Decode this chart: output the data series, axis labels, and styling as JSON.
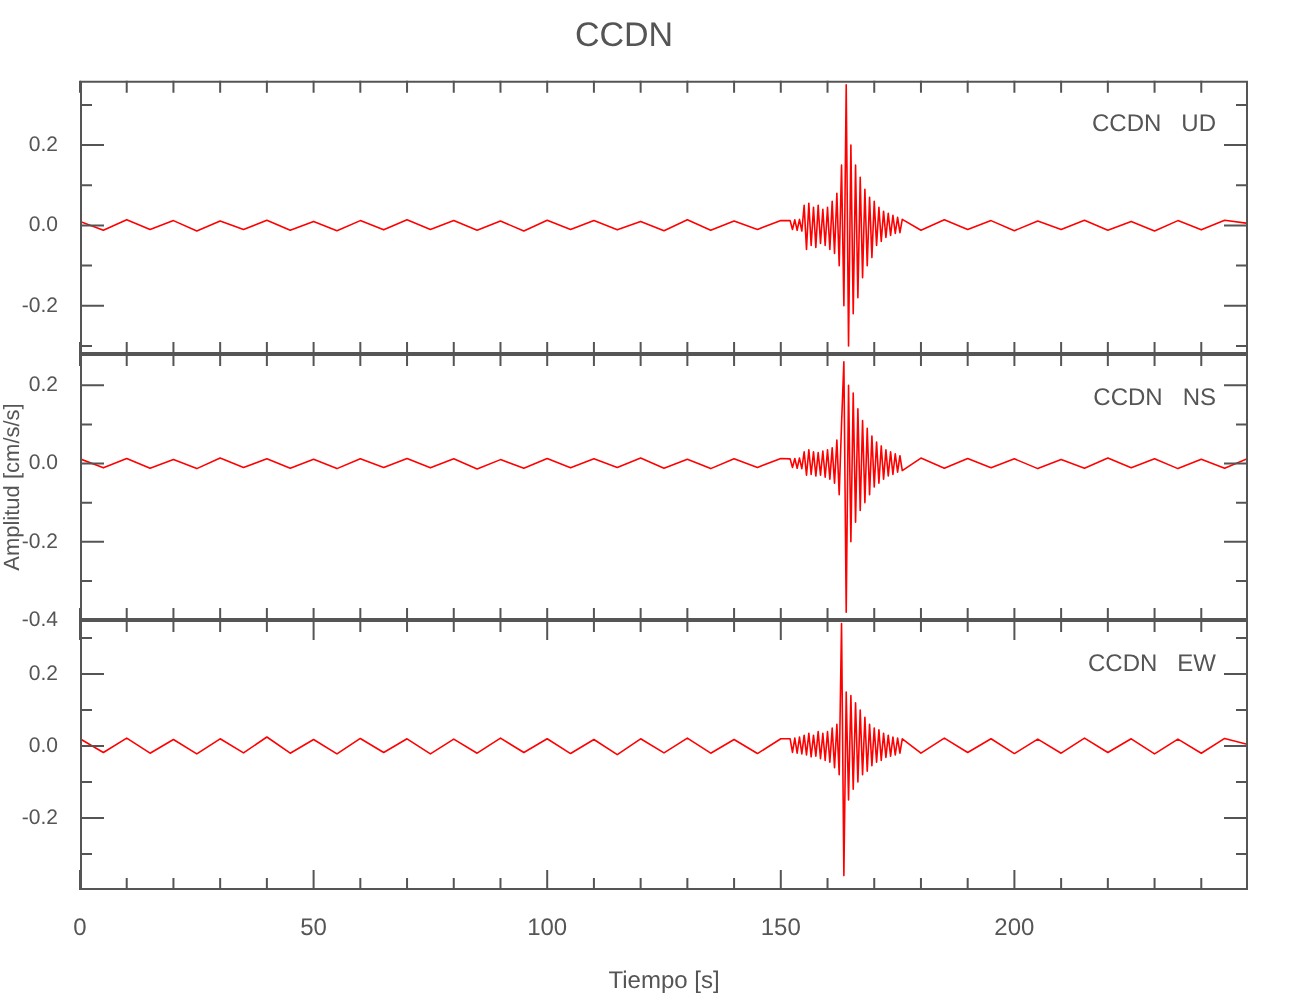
{
  "chart_data": [
    {
      "type": "line",
      "title": "CCDN",
      "annotations": [
        "CCDN   UD"
      ],
      "tick_labels": "y",
      "xlim": [
        0,
        250
      ],
      "xticks": [
        {
          "value": 0,
          "label": null
        },
        {
          "value": 10,
          "label": null
        },
        {
          "value": 20,
          "label": null
        },
        {
          "value": 30,
          "label": null
        },
        {
          "value": 40,
          "label": null
        },
        {
          "value": 50,
          "label": null
        },
        {
          "value": 60,
          "label": null
        },
        {
          "value": 70,
          "label": null
        },
        {
          "value": 80,
          "label": null
        },
        {
          "value": 90,
          "label": null
        },
        {
          "value": 100,
          "label": null
        },
        {
          "value": 110,
          "label": null
        },
        {
          "value": 120,
          "label": null
        },
        {
          "value": 130,
          "label": null
        },
        {
          "value": 140,
          "label": null
        },
        {
          "value": 150,
          "label": null
        },
        {
          "value": 160,
          "label": null
        },
        {
          "value": 170,
          "label": null
        },
        {
          "value": 180,
          "label": null
        },
        {
          "value": 190,
          "label": null
        },
        {
          "value": 200,
          "label": null
        },
        {
          "value": 210,
          "label": null
        },
        {
          "value": 220,
          "label": null
        },
        {
          "value": 230,
          "label": null
        },
        {
          "value": 240,
          "label": null
        }
      ],
      "ylim": [
        -0.32,
        0.36
      ],
      "yticks": [
        {
          "value": -0.3,
          "label": null
        },
        -0.2,
        {
          "value": -0.1,
          "label": null
        },
        {
          "value": 0,
          "label": "0.0"
        },
        {
          "value": 0.1,
          "label": null
        },
        0.2,
        {
          "value": 0.3,
          "label": null
        }
      ],
      "x": [
        0,
        5,
        10,
        15,
        20,
        25,
        30,
        35,
        40,
        45,
        50,
        55,
        60,
        65,
        70,
        75,
        80,
        85,
        90,
        95,
        100,
        105,
        110,
        115,
        120,
        125,
        130,
        135,
        140,
        145,
        150,
        152,
        152.5,
        153,
        153.5,
        154,
        154.5,
        155,
        155.5,
        156,
        156.5,
        157,
        157.5,
        158,
        158.5,
        159,
        159.5,
        160,
        160.5,
        161,
        161.5,
        162,
        162.5,
        163,
        163.5,
        164,
        164.5,
        165,
        165.5,
        166,
        166.5,
        167,
        167.5,
        168,
        168.5,
        169,
        169.5,
        170,
        170.5,
        171,
        171.5,
        172,
        172.5,
        173,
        173.5,
        174,
        174.5,
        175,
        175.5,
        176,
        180,
        185,
        190,
        195,
        200,
        205,
        210,
        215,
        220,
        225,
        230,
        235,
        240,
        245,
        250
      ],
      "series": [
        {
          "color": "#ff0000",
          "values": [
            0.01,
            -0.012,
            0.014,
            -0.01,
            0.012,
            -0.014,
            0.011,
            -0.01,
            0.013,
            -0.012,
            0.01,
            -0.013,
            0.012,
            -0.011,
            0.014,
            -0.01,
            0.012,
            -0.012,
            0.011,
            -0.014,
            0.013,
            -0.01,
            0.012,
            -0.011,
            0.01,
            -0.013,
            0.014,
            -0.012,
            0.011,
            -0.01,
            0.012,
            0.012,
            -0.01,
            0.014,
            -0.012,
            0.015,
            -0.014,
            0.05,
            -0.06,
            0.055,
            -0.05,
            0.045,
            -0.055,
            0.05,
            -0.045,
            0.04,
            -0.05,
            0.045,
            -0.06,
            0.06,
            -0.07,
            0.08,
            -0.1,
            0.15,
            -0.2,
            0.35,
            -0.3,
            0.2,
            -0.22,
            0.15,
            -0.18,
            0.12,
            -0.13,
            0.09,
            -0.1,
            0.07,
            -0.08,
            0.06,
            -0.05,
            0.045,
            -0.04,
            0.035,
            -0.03,
            0.03,
            -0.025,
            0.025,
            -0.02,
            0.02,
            -0.018,
            0.015,
            -0.012,
            0.014,
            -0.01,
            0.012,
            -0.013,
            0.011,
            -0.01,
            0.013,
            -0.012,
            0.01,
            -0.014,
            0.012,
            -0.011,
            0.013,
            0.005
          ]
        }
      ]
    },
    {
      "type": "line",
      "ylabel": "Amplitud [cm/s/s]",
      "annotations": [
        "CCDN   NS"
      ],
      "tick_labels": "y",
      "xlim": [
        0,
        250
      ],
      "xticks": [
        {
          "value": 0,
          "label": null
        },
        {
          "value": 10,
          "label": null
        },
        {
          "value": 20,
          "label": null
        },
        {
          "value": 30,
          "label": null
        },
        {
          "value": 40,
          "label": null
        },
        {
          "value": 50,
          "label": null
        },
        {
          "value": 60,
          "label": null
        },
        {
          "value": 70,
          "label": null
        },
        {
          "value": 80,
          "label": null
        },
        {
          "value": 90,
          "label": null
        },
        {
          "value": 100,
          "label": null
        },
        {
          "value": 110,
          "label": null
        },
        {
          "value": 120,
          "label": null
        },
        {
          "value": 130,
          "label": null
        },
        {
          "value": 140,
          "label": null
        },
        {
          "value": 150,
          "label": null
        },
        {
          "value": 160,
          "label": null
        },
        {
          "value": 170,
          "label": null
        },
        {
          "value": 180,
          "label": null
        },
        {
          "value": 190,
          "label": null
        },
        {
          "value": 200,
          "label": null
        },
        {
          "value": 210,
          "label": null
        },
        {
          "value": 220,
          "label": null
        },
        {
          "value": 230,
          "label": null
        },
        {
          "value": 240,
          "label": null
        }
      ],
      "ylim": [
        -0.4,
        0.28
      ],
      "yticks": [
        -0.4,
        {
          "value": -0.3,
          "label": null
        },
        -0.2,
        {
          "value": -0.1,
          "label": null
        },
        {
          "value": 0,
          "label": "0.0"
        },
        {
          "value": 0.1,
          "label": null
        },
        0.2
      ],
      "x": [
        0,
        5,
        10,
        15,
        20,
        25,
        30,
        35,
        40,
        45,
        50,
        55,
        60,
        65,
        70,
        75,
        80,
        85,
        90,
        95,
        100,
        105,
        110,
        115,
        120,
        125,
        130,
        135,
        140,
        145,
        150,
        152,
        152.5,
        153,
        153.5,
        154,
        154.5,
        155,
        155.5,
        156,
        156.5,
        157,
        157.5,
        158,
        158.5,
        159,
        159.5,
        160,
        160.5,
        161,
        161.5,
        162,
        162.5,
        163,
        163.5,
        164,
        164.5,
        165,
        165.5,
        166,
        166.5,
        167,
        167.5,
        168,
        168.5,
        169,
        169.5,
        170,
        170.5,
        171,
        171.5,
        172,
        172.5,
        173,
        173.5,
        174,
        174.5,
        175,
        175.5,
        176,
        180,
        185,
        190,
        195,
        200,
        205,
        210,
        215,
        220,
        225,
        230,
        235,
        240,
        245,
        250
      ],
      "series": [
        {
          "color": "#ff0000",
          "values": [
            0.012,
            -0.011,
            0.013,
            -0.012,
            0.01,
            -0.013,
            0.014,
            -0.01,
            0.012,
            -0.012,
            0.011,
            -0.013,
            0.012,
            -0.01,
            0.013,
            -0.011,
            0.012,
            -0.014,
            0.01,
            -0.012,
            0.013,
            -0.011,
            0.012,
            -0.01,
            0.014,
            -0.012,
            0.011,
            -0.013,
            0.012,
            -0.01,
            0.013,
            0.012,
            -0.01,
            0.013,
            -0.012,
            0.014,
            -0.013,
            0.03,
            -0.03,
            0.035,
            -0.028,
            0.03,
            -0.032,
            0.028,
            -0.03,
            0.032,
            -0.035,
            0.035,
            -0.04,
            0.04,
            -0.05,
            0.06,
            -0.08,
            0.1,
            0.26,
            -0.38,
            0.2,
            -0.2,
            0.18,
            -0.15,
            0.14,
            -0.12,
            0.11,
            -0.1,
            0.09,
            -0.08,
            0.07,
            -0.06,
            0.055,
            -0.05,
            0.045,
            -0.04,
            0.035,
            -0.032,
            0.03,
            -0.028,
            0.025,
            -0.022,
            0.02,
            -0.018,
            0.014,
            -0.012,
            0.013,
            -0.011,
            0.012,
            -0.013,
            0.01,
            -0.012,
            0.014,
            -0.011,
            0.012,
            -0.013,
            0.011,
            -0.012,
            0.013
          ]
        }
      ]
    },
    {
      "type": "line",
      "xlabel": "Tiempo [s]",
      "annotations": [
        "CCDN   EW"
      ],
      "xlim": [
        0,
        250
      ],
      "xticks": [
        0,
        {
          "value": 10,
          "label": null
        },
        {
          "value": 20,
          "label": null
        },
        {
          "value": 30,
          "label": null
        },
        {
          "value": 40,
          "label": null
        },
        50,
        {
          "value": 60,
          "label": null
        },
        {
          "value": 70,
          "label": null
        },
        {
          "value": 80,
          "label": null
        },
        {
          "value": 90,
          "label": null
        },
        100,
        {
          "value": 110,
          "label": null
        },
        {
          "value": 120,
          "label": null
        },
        {
          "value": 130,
          "label": null
        },
        {
          "value": 140,
          "label": null
        },
        150,
        {
          "value": 160,
          "label": null
        },
        {
          "value": 170,
          "label": null
        },
        {
          "value": 180,
          "label": null
        },
        {
          "value": 190,
          "label": null
        },
        200,
        {
          "value": 210,
          "label": null
        },
        {
          "value": 220,
          "label": null
        },
        {
          "value": 230,
          "label": null
        },
        {
          "value": 240,
          "label": null
        }
      ],
      "ylim": [
        -0.4,
        0.35
      ],
      "yticks": [
        {
          "value": -0.3,
          "label": null
        },
        -0.2,
        {
          "value": -0.1,
          "label": null
        },
        {
          "value": 0,
          "label": "0.0"
        },
        {
          "value": 0.1,
          "label": null
        },
        0.2,
        {
          "value": 0.3,
          "label": null
        }
      ],
      "x": [
        0,
        5,
        10,
        15,
        20,
        25,
        30,
        35,
        40,
        45,
        50,
        55,
        60,
        65,
        70,
        75,
        80,
        85,
        90,
        95,
        100,
        105,
        110,
        115,
        120,
        125,
        130,
        135,
        140,
        145,
        150,
        152,
        152.5,
        153,
        153.5,
        154,
        154.5,
        155,
        155.5,
        156,
        156.5,
        157,
        157.5,
        158,
        158.5,
        159,
        159.5,
        160,
        160.5,
        161,
        161.5,
        162,
        162.5,
        163,
        163.5,
        164,
        164.5,
        165,
        165.5,
        166,
        166.5,
        167,
        167.5,
        168,
        168.5,
        169,
        169.5,
        170,
        170.5,
        171,
        171.5,
        172,
        172.5,
        173,
        173.5,
        174,
        174.5,
        175,
        175.5,
        176,
        180,
        185,
        190,
        195,
        200,
        205,
        210,
        215,
        220,
        225,
        230,
        235,
        240,
        245,
        250
      ],
      "series": [
        {
          "color": "#ff0000",
          "values": [
            0.02,
            -0.018,
            0.022,
            -0.02,
            0.018,
            -0.022,
            0.02,
            -0.019,
            0.025,
            -0.02,
            0.018,
            -0.022,
            0.021,
            -0.018,
            0.02,
            -0.022,
            0.019,
            -0.02,
            0.022,
            -0.018,
            0.02,
            -0.021,
            0.018,
            -0.024,
            0.02,
            -0.019,
            0.022,
            -0.02,
            0.018,
            -0.021,
            0.02,
            0.02,
            -0.018,
            0.022,
            -0.02,
            0.025,
            -0.022,
            0.03,
            -0.025,
            0.035,
            -0.03,
            0.03,
            -0.028,
            0.04,
            -0.035,
            0.035,
            -0.04,
            0.04,
            -0.045,
            0.05,
            -0.06,
            0.06,
            -0.08,
            0.34,
            -0.36,
            0.15,
            -0.15,
            0.14,
            -0.12,
            0.12,
            -0.1,
            0.1,
            -0.08,
            0.08,
            -0.07,
            0.06,
            -0.055,
            0.05,
            -0.045,
            0.045,
            -0.04,
            0.035,
            -0.032,
            0.03,
            -0.028,
            0.025,
            -0.025,
            0.022,
            -0.02,
            0.02,
            -0.02,
            0.022,
            -0.018,
            0.02,
            -0.021,
            0.019,
            -0.02,
            0.022,
            -0.018,
            0.02,
            -0.022,
            0.019,
            -0.02,
            0.021,
            0.004
          ]
        }
      ]
    }
  ]
}
